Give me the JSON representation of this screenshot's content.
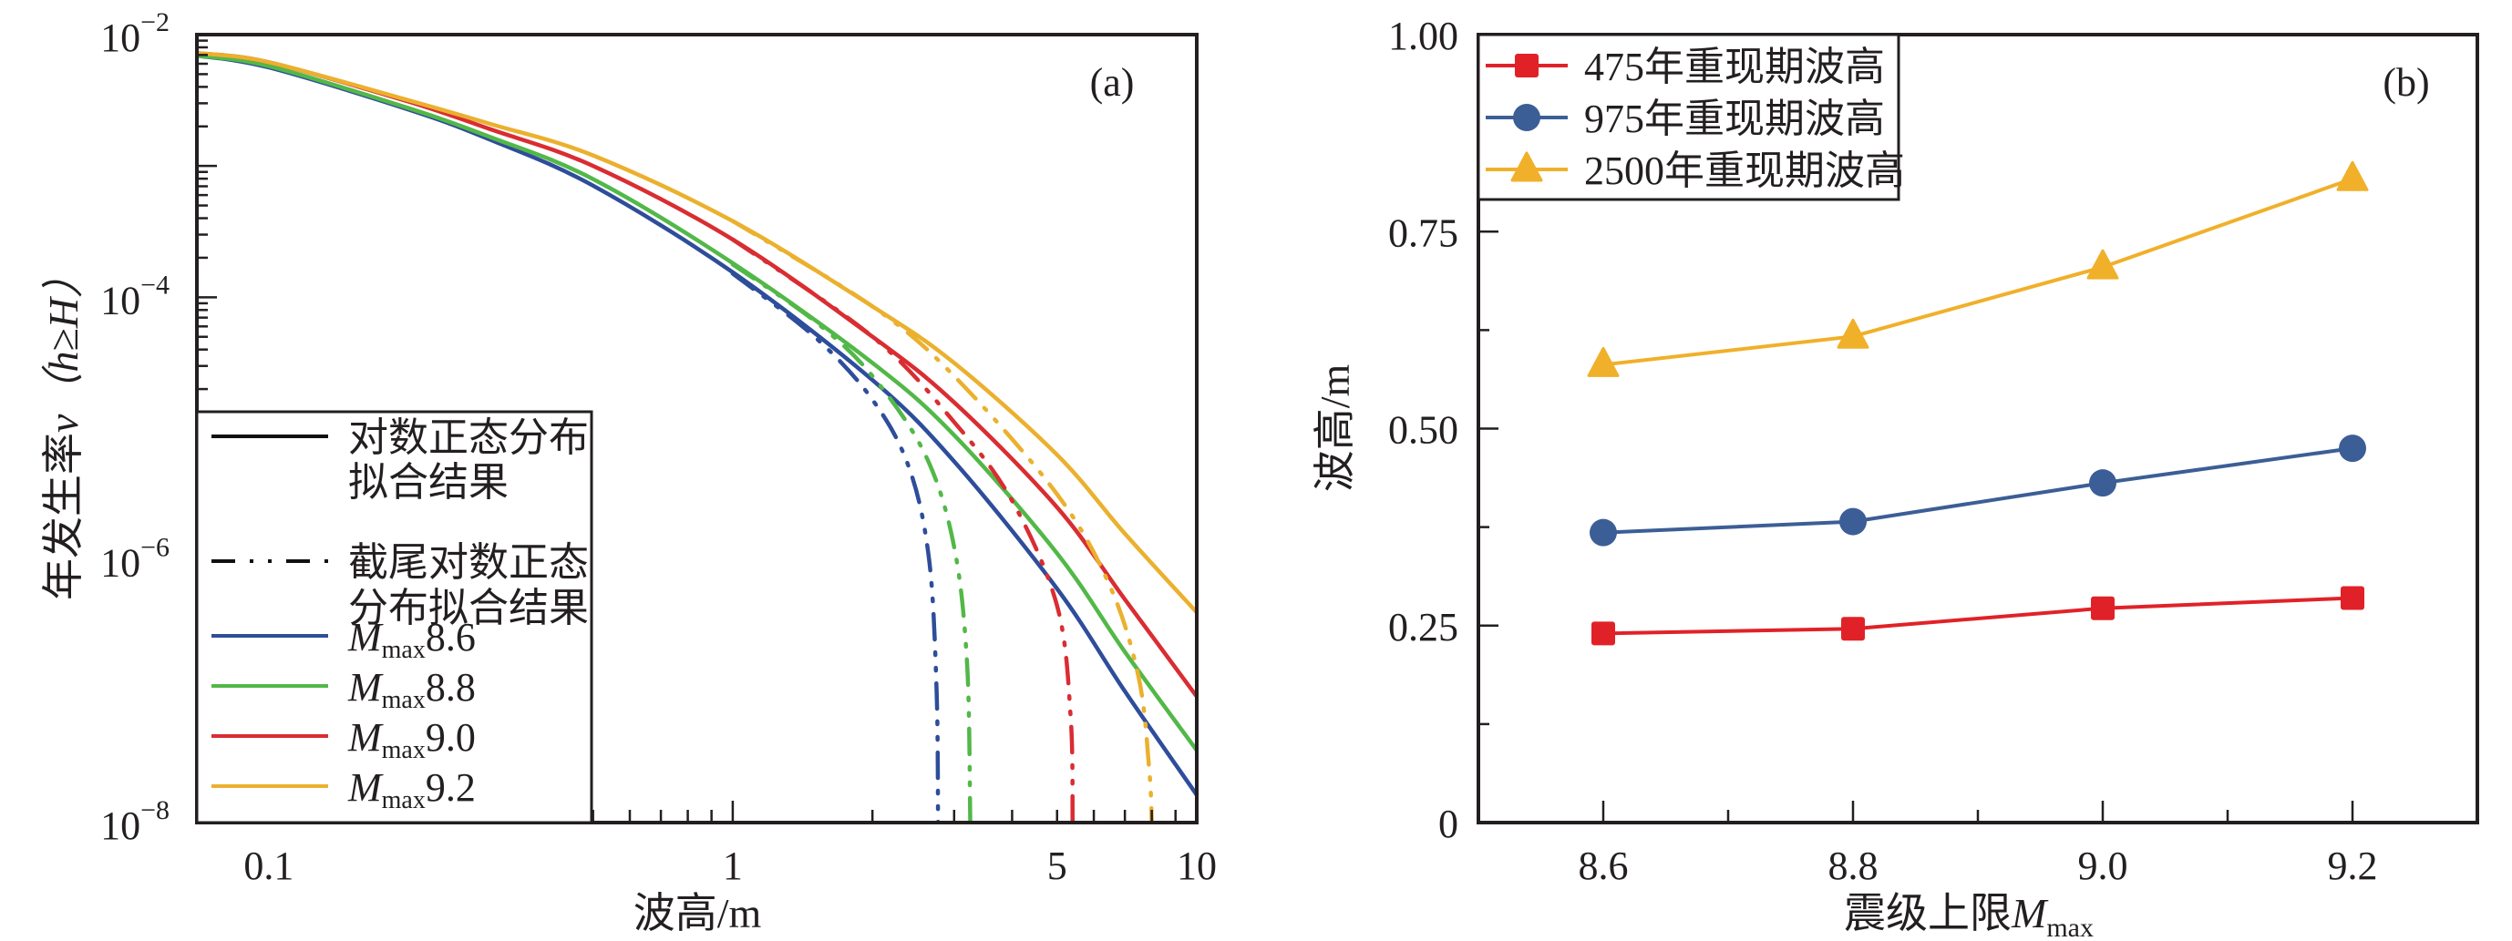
{
  "chart_data": [
    {
      "type": "line",
      "panel_label": "(a)",
      "title": "",
      "xlabel": "波高/m",
      "ylabel_main": "年发生率",
      "ylabel_var": "ν（h≥H）",
      "xscale": "log",
      "yscale": "log",
      "xlim": [
        0.07,
        10
      ],
      "ylim": [
        1e-08,
        0.01
      ],
      "x_ticks": [
        {
          "value": 0.1,
          "label": "0.1"
        },
        {
          "value": 1,
          "label": "1"
        },
        {
          "value": 5,
          "label": "5"
        },
        {
          "value": 10,
          "label": "10"
        }
      ],
      "y_ticks": [
        {
          "exp": -2,
          "base": "10",
          "sup": "−2"
        },
        {
          "exp": -4,
          "base": "10",
          "sup": "−4"
        },
        {
          "exp": -6,
          "base": "10",
          "sup": "−6"
        },
        {
          "exp": -8,
          "base": "10",
          "sup": "−8"
        }
      ],
      "legend": {
        "position": "bottom-left",
        "style_entries": [
          {
            "label_lines": [
              "对数正态分布",
              "拟合结果"
            ],
            "line_style": "solid"
          },
          {
            "label_lines": [
              "截尾对数正态",
              "分布拟合结果"
            ],
            "line_style": "dash-dot-dot"
          }
        ],
        "color_entries": [
          {
            "prefix": "M",
            "sub": "max",
            "value": "8.6",
            "color": "#2e4d9a"
          },
          {
            "prefix": "M",
            "sub": "max",
            "value": "8.8",
            "color": "#52b848"
          },
          {
            "prefix": "M",
            "sub": "max",
            "value": "9.0",
            "color": "#d92d32"
          },
          {
            "prefix": "M",
            "sub": "max",
            "value": "9.2",
            "color": "#ebb02e"
          }
        ]
      },
      "series": [
        {
          "name": "Mmax8.6 对数正态分布拟合结果",
          "color": "#2e4d9a",
          "style": "solid",
          "x": [
            0.07,
            0.1,
            0.2,
            0.3,
            0.5,
            1,
            2,
            3,
            5,
            7,
            10
          ],
          "log10_y": [
            -2.16,
            -2.25,
            -2.57,
            -2.8,
            -3.15,
            -3.81,
            -4.63,
            -5.25,
            -6.22,
            -7.0,
            -7.79
          ]
        },
        {
          "name": "Mmax8.8 对数正态分布拟合结果",
          "color": "#52b848",
          "style": "solid",
          "x": [
            0.07,
            0.1,
            0.2,
            0.3,
            0.5,
            1,
            2,
            3,
            5,
            7,
            10
          ],
          "log10_y": [
            -2.16,
            -2.24,
            -2.56,
            -2.78,
            -3.1,
            -3.74,
            -4.5,
            -5.05,
            -5.95,
            -6.7,
            -7.45
          ]
        },
        {
          "name": "Mmax9.0 对数正态分布拟合结果",
          "color": "#d92d32",
          "style": "solid",
          "x": [
            0.07,
            0.1,
            0.2,
            0.3,
            0.5,
            1,
            2,
            3,
            5,
            7,
            10
          ],
          "log10_y": [
            -2.14,
            -2.21,
            -2.51,
            -2.72,
            -3.0,
            -3.56,
            -4.3,
            -4.8,
            -5.6,
            -6.3,
            -7.04
          ]
        },
        {
          "name": "Mmax9.2 对数正态分布拟合结果",
          "color": "#ebb02e",
          "style": "solid",
          "x": [
            0.07,
            0.1,
            0.2,
            0.3,
            0.5,
            1,
            2,
            3,
            5,
            7,
            10
          ],
          "log10_y": [
            -2.14,
            -2.21,
            -2.5,
            -2.68,
            -2.92,
            -3.42,
            -4.07,
            -4.5,
            -5.2,
            -5.8,
            -6.4
          ]
        },
        {
          "name": "Mmax8.6 截尾对数正态分布拟合结果",
          "color": "#2e4d9a",
          "style": "dash-dot-dot",
          "x": [
            1,
            1.5,
            2,
            2.4,
            2.65,
            2.75,
            2.77
          ],
          "log10_y": [
            -3.82,
            -4.3,
            -4.78,
            -5.3,
            -6.0,
            -7.0,
            -8.0
          ]
        },
        {
          "name": "Mmax8.8 截尾对数正态分布拟合结果",
          "color": "#52b848",
          "style": "dash-dot-dot",
          "x": [
            1,
            1.5,
            2,
            2.6,
            3.0,
            3.2,
            3.25
          ],
          "log10_y": [
            -3.75,
            -4.18,
            -4.6,
            -5.2,
            -5.9,
            -6.8,
            -8.0
          ]
        },
        {
          "name": "Mmax9.0 截尾对数正态分布拟合结果",
          "color": "#d92d32",
          "style": "dash-dot-dot",
          "x": [
            1,
            2,
            3,
            4,
            5,
            5.35,
            5.4
          ],
          "log10_y": [
            -3.56,
            -4.3,
            -4.95,
            -5.55,
            -6.35,
            -7.2,
            -8.0
          ]
        },
        {
          "name": "Mmax9.2 截尾对数正态分布拟合结果",
          "color": "#ebb02e",
          "style": "dash-dot-dot",
          "x": [
            1,
            2,
            3,
            5,
            6.5,
            7.5,
            7.9,
            8.0
          ],
          "log10_y": [
            -3.42,
            -4.07,
            -4.6,
            -5.5,
            -6.2,
            -6.9,
            -7.6,
            -8.0
          ]
        }
      ]
    },
    {
      "type": "line",
      "panel_label": "(b)",
      "title": "",
      "xlabel_main": "震级上限",
      "xlabel_var": "M",
      "xlabel_sub": "max",
      "ylabel": "波高/m",
      "xlim": [
        8.5,
        9.3
      ],
      "ylim": [
        0,
        1.0
      ],
      "categories": [
        8.6,
        8.8,
        9.0,
        9.2
      ],
      "x_ticks": [
        {
          "value": 8.6,
          "label": "8.6"
        },
        {
          "value": 8.8,
          "label": "8.8"
        },
        {
          "value": 9.0,
          "label": "9.0"
        },
        {
          "value": 9.2,
          "label": "9.2"
        }
      ],
      "y_ticks": [
        {
          "value": 0,
          "label": "0"
        },
        {
          "value": 0.25,
          "label": "0.25"
        },
        {
          "value": 0.5,
          "label": "0.50"
        },
        {
          "value": 0.75,
          "label": "0.75"
        },
        {
          "value": 1.0,
          "label": "1.00"
        }
      ],
      "legend_position": "top-left",
      "series": [
        {
          "name": "475年重现期波高",
          "color": "#e02228",
          "marker": "square",
          "values": [
            0.24,
            0.246,
            0.272,
            0.285
          ]
        },
        {
          "name": "975年重现期波高",
          "color": "#3c5e96",
          "marker": "circle",
          "values": [
            0.368,
            0.382,
            0.431,
            0.475
          ]
        },
        {
          "name": "2500年重现期波高",
          "color": "#f0b02a",
          "marker": "triangle",
          "values": [
            0.581,
            0.617,
            0.705,
            0.817
          ]
        }
      ]
    }
  ]
}
